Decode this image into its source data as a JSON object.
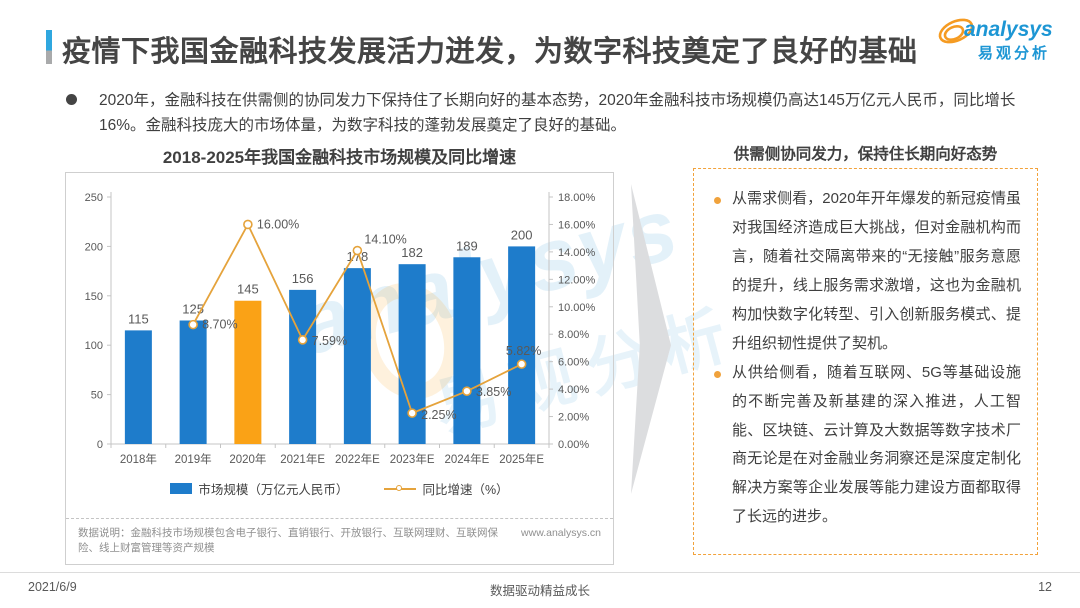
{
  "page": {
    "title": "疫情下我国金融科技发展活力迸发，为数字科技奠定了良好的基础",
    "logo": {
      "brand": "analysys",
      "brand_cn": "易观分析"
    },
    "summary": "2020年，金融科技在供需侧的协同发力下保持住了长期向好的基本态势，2020年金融科技市场规模仍高达145万亿元人民币，同比增长16%。金融科技庞大的市场体量，为数字科技的蓬勃发展奠定了良好的基础。",
    "footer": {
      "date": "2021/6/9",
      "center": "数据驱动精益成长",
      "page_number": "12"
    }
  },
  "chart_data": {
    "type": "bar",
    "title": "2018-2025年我国金融科技市场规模及同比增速",
    "categories": [
      "2018年",
      "2019年",
      "2020年",
      "2021年E",
      "2022年E",
      "2023年E",
      "2024年E",
      "2025年E"
    ],
    "series": [
      {
        "name": "市场规模（万亿元人民币）",
        "type": "bar",
        "axis": "left",
        "values": [
          115,
          125,
          145,
          156,
          178,
          182,
          189,
          200
        ]
      },
      {
        "name": "同比增速（%）",
        "type": "line",
        "axis": "right",
        "values": [
          null,
          8.7,
          16.0,
          7.59,
          14.1,
          2.25,
          3.85,
          5.82
        ],
        "labels": [
          null,
          "8.70%",
          "16.00%",
          "7.59%",
          "14.10%",
          "2.25%",
          "3.85%",
          "5.82%"
        ]
      }
    ],
    "left_axis": {
      "min": 0,
      "max": 250,
      "step": 50,
      "ticks": [
        "0",
        "50",
        "100",
        "150",
        "200",
        "250"
      ]
    },
    "right_axis": {
      "min": 0,
      "max": 18,
      "step": 2,
      "ticks": [
        "0.00%",
        "2.00%",
        "4.00%",
        "6.00%",
        "8.00%",
        "10.00%",
        "12.00%",
        "14.00%",
        "16.00%",
        "18.00%"
      ]
    },
    "colors": {
      "bar": "#1E7CCB",
      "bar_highlight": "#FAA216",
      "highlight_index": 2,
      "line": "#E5A33C"
    },
    "legend_position": "bottom",
    "grid": false,
    "footnote": "数据说明：金融科技市场规模包含电子银行、直销银行、开放银行、互联网理财、互联网保险、线上财富管理等资产规模",
    "source_url": "www.analysys.cn"
  },
  "panel": {
    "title": "供需侧协同发力，保持住长期向好态势",
    "bullets": [
      "从需求侧看，2020年开年爆发的新冠疫情虽对我国经济造成巨大挑战，但对金融机构而言，随着社交隔离带来的“无接触”服务意愿的提升，线上服务需求激增，这也为金融机构加快数字化转型、引入创新服务模式、提升组织韧性提供了契机。",
      "从供给侧看，随着互联网、5G等基础设施的不断完善及新基建的深入推进，人工智能、区块链、云计算及大数据等数字技术厂商无论是在对金融业务洞察还是深度定制化解决方案等企业发展等能力建设方面都取得了长远的进步。"
    ]
  }
}
